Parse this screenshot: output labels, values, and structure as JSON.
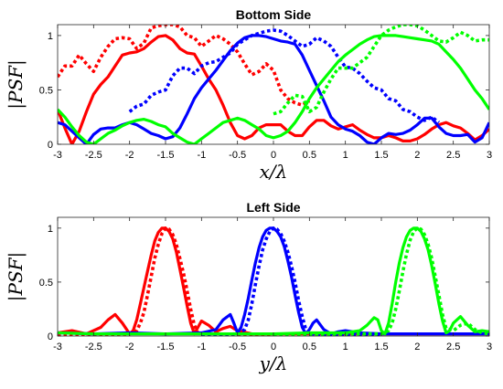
{
  "chart_data": [
    {
      "type": "line",
      "title": "Bottom Side",
      "xlabel": "x/λ",
      "ylabel": "|PSF|",
      "xlim": [
        -3,
        3
      ],
      "ylim": [
        0,
        1.1
      ],
      "xticks": [
        -3,
        -2.5,
        -2,
        -1.5,
        -1,
        -0.5,
        0,
        0.5,
        1,
        1.5,
        2,
        2.5,
        3
      ],
      "yticks": [
        0,
        0.5,
        1
      ],
      "grid": false,
      "series": [
        {
          "color": "#ff0000",
          "style": "solid",
          "x": [
            -3,
            -2.9,
            -2.8,
            -2.7,
            -2.6,
            -2.5,
            -2.4,
            -2.3,
            -2.2,
            -2.1,
            -2.0,
            -1.9,
            -1.8,
            -1.7,
            -1.6,
            -1.5,
            -1.4,
            -1.3,
            -1.2,
            -1.1,
            -1.0,
            -0.9,
            -0.8,
            -0.7,
            -0.6,
            -0.5,
            -0.4,
            -0.3,
            -0.2,
            -0.1,
            0.0,
            0.1,
            0.2,
            0.3,
            0.4,
            0.5,
            0.6,
            0.7,
            0.8,
            0.9,
            1.0,
            1.1,
            1.2,
            1.3,
            1.4,
            1.5,
            1.6,
            1.7,
            1.8,
            1.9,
            2.0,
            2.1,
            2.2,
            2.3,
            2.4,
            2.5,
            2.6,
            2.7,
            2.8,
            2.9,
            3.0
          ],
          "y": [
            0.32,
            0.15,
            0.0,
            0.12,
            0.3,
            0.46,
            0.55,
            0.62,
            0.72,
            0.82,
            0.84,
            0.85,
            0.88,
            0.94,
            0.99,
            1.0,
            0.96,
            0.88,
            0.84,
            0.83,
            0.72,
            0.6,
            0.5,
            0.36,
            0.2,
            0.08,
            0.05,
            0.08,
            0.15,
            0.18,
            0.18,
            0.18,
            0.12,
            0.08,
            0.08,
            0.16,
            0.22,
            0.22,
            0.17,
            0.14,
            0.16,
            0.18,
            0.13,
            0.09,
            0.06,
            0.06,
            0.08,
            0.06,
            0.03,
            0.03,
            0.05,
            0.09,
            0.14,
            0.18,
            0.2,
            0.17,
            0.15,
            0.1,
            0.04,
            0.08,
            0.14
          ]
        },
        {
          "color": "#ff0000",
          "style": "dotted",
          "x": [
            -3,
            -2.9,
            -2.8,
            -2.7,
            -2.6,
            -2.5,
            -2.4,
            -2.3,
            -2.2,
            -2.1,
            -2.0,
            -1.9,
            -1.8,
            -1.7,
            -1.6,
            -1.5,
            -1.4,
            -1.3,
            -1.2,
            -1.1,
            -1.0,
            -0.9,
            -0.8,
            -0.7,
            -0.6,
            -0.5,
            -0.4,
            -0.3,
            -0.2,
            -0.1,
            0.0,
            0.1,
            0.2,
            0.3,
            0.4,
            0.5
          ],
          "y": [
            0.62,
            0.72,
            0.72,
            0.82,
            0.74,
            0.67,
            0.8,
            0.9,
            0.97,
            0.98,
            0.97,
            0.88,
            0.93,
            1.07,
            1.09,
            1.1,
            1.1,
            1.08,
            1.0,
            0.98,
            0.9,
            0.95,
            1.0,
            0.97,
            0.92,
            0.85,
            0.74,
            0.64,
            0.67,
            0.74,
            0.68,
            0.5,
            0.42,
            0.38,
            0.36,
            0.4
          ]
        },
        {
          "color": "#0000ff",
          "style": "solid",
          "x": [
            -3,
            -2.9,
            -2.8,
            -2.7,
            -2.6,
            -2.5,
            -2.4,
            -2.3,
            -2.2,
            -2.1,
            -2.0,
            -1.9,
            -1.8,
            -1.7,
            -1.6,
            -1.5,
            -1.4,
            -1.3,
            -1.2,
            -1.1,
            -1.0,
            -0.9,
            -0.8,
            -0.7,
            -0.6,
            -0.5,
            -0.4,
            -0.3,
            -0.2,
            -0.1,
            0.0,
            0.1,
            0.2,
            0.3,
            0.4,
            0.5,
            0.6,
            0.7,
            0.8,
            0.9,
            1.0,
            1.1,
            1.2,
            1.3,
            1.4,
            1.5,
            1.6,
            1.7,
            1.8,
            1.9,
            2.0,
            2.1,
            2.2,
            2.3,
            2.4,
            2.5,
            2.6,
            2.7,
            2.8,
            2.9,
            3.0
          ],
          "y": [
            0.2,
            0.18,
            0.12,
            0.06,
            0.0,
            0.09,
            0.14,
            0.15,
            0.15,
            0.18,
            0.2,
            0.18,
            0.14,
            0.1,
            0.08,
            0.05,
            0.07,
            0.15,
            0.28,
            0.42,
            0.52,
            0.6,
            0.68,
            0.77,
            0.86,
            0.93,
            0.98,
            1.0,
            1.0,
            0.99,
            0.97,
            0.95,
            0.94,
            0.92,
            0.82,
            0.68,
            0.54,
            0.4,
            0.25,
            0.18,
            0.14,
            0.12,
            0.08,
            0.02,
            0.0,
            0.06,
            0.1,
            0.09,
            0.1,
            0.13,
            0.18,
            0.24,
            0.24,
            0.16,
            0.1,
            0.08,
            0.08,
            0.09,
            0.02,
            0.06,
            0.2
          ]
        },
        {
          "color": "#0000ff",
          "style": "dotted",
          "x": [
            -2.0,
            -1.9,
            -1.8,
            -1.7,
            -1.6,
            -1.5,
            -1.4,
            -1.3,
            -1.2,
            -1.1,
            -1.0,
            -0.9,
            -0.8,
            -0.7,
            -0.6,
            -0.5,
            -0.4,
            -0.3,
            -0.2,
            -0.1,
            0.0,
            0.1,
            0.2,
            0.3,
            0.4,
            0.5,
            0.6,
            0.7,
            0.8,
            0.9,
            1.0,
            1.1,
            1.2,
            1.3,
            1.4,
            1.5,
            1.6,
            1.7,
            1.8,
            1.9,
            2.0,
            2.1,
            2.2,
            2.3
          ],
          "y": [
            0.3,
            0.35,
            0.37,
            0.45,
            0.48,
            0.5,
            0.63,
            0.7,
            0.7,
            0.65,
            0.72,
            0.75,
            0.76,
            0.8,
            0.84,
            0.92,
            0.96,
            1.0,
            1.02,
            1.04,
            1.05,
            1.04,
            1.0,
            0.95,
            0.9,
            0.92,
            0.98,
            0.95,
            0.9,
            0.8,
            0.71,
            0.7,
            0.65,
            0.58,
            0.52,
            0.5,
            0.42,
            0.4,
            0.32,
            0.3,
            0.25,
            0.22,
            0.25,
            0.2
          ]
        },
        {
          "color": "#00ff00",
          "style": "solid",
          "x": [
            -3,
            -2.9,
            -2.8,
            -2.7,
            -2.6,
            -2.5,
            -2.4,
            -2.3,
            -2.2,
            -2.1,
            -2.0,
            -1.9,
            -1.8,
            -1.7,
            -1.6,
            -1.5,
            -1.4,
            -1.3,
            -1.2,
            -1.1,
            -1.0,
            -0.9,
            -0.8,
            -0.7,
            -0.6,
            -0.5,
            -0.4,
            -0.3,
            -0.2,
            -0.1,
            0.0,
            0.1,
            0.2,
            0.3,
            0.4,
            0.5,
            0.6,
            0.7,
            0.8,
            0.9,
            1.0,
            1.1,
            1.2,
            1.3,
            1.4,
            1.5,
            1.6,
            1.7,
            1.8,
            1.9,
            2.0,
            2.1,
            2.2,
            2.3,
            2.4,
            2.5,
            2.6,
            2.7,
            2.8,
            2.9,
            3.0
          ],
          "y": [
            0.32,
            0.25,
            0.16,
            0.08,
            0.02,
            0.0,
            0.05,
            0.1,
            0.13,
            0.17,
            0.2,
            0.22,
            0.23,
            0.21,
            0.18,
            0.16,
            0.1,
            0.06,
            0.02,
            0.0,
            0.05,
            0.1,
            0.15,
            0.2,
            0.22,
            0.24,
            0.22,
            0.18,
            0.14,
            0.08,
            0.06,
            0.08,
            0.12,
            0.2,
            0.3,
            0.42,
            0.52,
            0.6,
            0.68,
            0.76,
            0.82,
            0.87,
            0.92,
            0.96,
            0.99,
            1.0,
            1.0,
            1.0,
            0.99,
            0.98,
            0.97,
            0.96,
            0.95,
            0.92,
            0.85,
            0.78,
            0.7,
            0.6,
            0.5,
            0.42,
            0.32
          ]
        },
        {
          "color": "#00ff00",
          "style": "dotted",
          "x": [
            0.0,
            0.1,
            0.2,
            0.3,
            0.4,
            0.5,
            0.6,
            0.7,
            0.8,
            0.9,
            1.0,
            1.1,
            1.2,
            1.3,
            1.4,
            1.5,
            1.6,
            1.7,
            1.8,
            1.9,
            2.0,
            2.1,
            2.2,
            2.3,
            2.4,
            2.5,
            2.6,
            2.7,
            2.8,
            2.9,
            3.0
          ],
          "y": [
            0.28,
            0.3,
            0.38,
            0.45,
            0.44,
            0.3,
            0.34,
            0.48,
            0.6,
            0.7,
            0.7,
            0.7,
            0.75,
            0.8,
            0.9,
            1.0,
            1.05,
            1.08,
            1.1,
            1.1,
            1.09,
            1.05,
            1.0,
            0.95,
            0.94,
            0.98,
            1.03,
            1.0,
            0.95,
            0.96,
            0.96
          ]
        }
      ]
    },
    {
      "type": "line",
      "title": "Left Side",
      "xlabel": "y/λ",
      "ylabel": "|PSF|",
      "xlim": [
        -3,
        3
      ],
      "ylim": [
        0,
        1.1
      ],
      "xticks": [
        -3,
        -2.5,
        -2,
        -1.5,
        -1,
        -0.5,
        0,
        0.5,
        1,
        1.5,
        2,
        2.5,
        3
      ],
      "yticks": [
        0,
        0.5,
        1
      ],
      "grid": false,
      "series": [
        {
          "color": "#ff0000",
          "style": "solid",
          "x": [
            -3,
            -2.8,
            -2.6,
            -2.4,
            -2.3,
            -2.2,
            -2.1,
            -2.0,
            -1.95,
            -1.9,
            -1.85,
            -1.8,
            -1.75,
            -1.7,
            -1.65,
            -1.6,
            -1.55,
            -1.5,
            -1.45,
            -1.4,
            -1.35,
            -1.3,
            -1.25,
            -1.2,
            -1.15,
            -1.1,
            -1.05,
            -1.0,
            -0.9,
            -0.8,
            -0.7,
            -0.6,
            -0.5,
            -0.3,
            0.0,
            0.5,
            1.0,
            1.5,
            2.0,
            2.5,
            3.0
          ],
          "y": [
            0.03,
            0.05,
            0.02,
            0.08,
            0.15,
            0.2,
            0.12,
            0.02,
            0.05,
            0.15,
            0.3,
            0.45,
            0.6,
            0.75,
            0.88,
            0.96,
            1.0,
            1.0,
            0.97,
            0.9,
            0.78,
            0.62,
            0.45,
            0.28,
            0.12,
            0.02,
            0.08,
            0.14,
            0.1,
            0.04,
            0.07,
            0.09,
            0.05,
            0.02,
            0.02,
            0.02,
            0.02,
            0.02,
            0.02,
            0.02,
            0.02
          ]
        },
        {
          "color": "#ff0000",
          "style": "dotted",
          "x": [
            -3,
            -2.5,
            -2.0,
            -1.9,
            -1.85,
            -1.8,
            -1.75,
            -1.7,
            -1.65,
            -1.6,
            -1.55,
            -1.5,
            -1.45,
            -1.4,
            -1.35,
            -1.3,
            -1.25,
            -1.2,
            -1.15,
            -1.1,
            -1.05,
            -1.0,
            -0.5,
            0.0
          ],
          "y": [
            0.01,
            0.01,
            0.02,
            0.05,
            0.12,
            0.22,
            0.38,
            0.55,
            0.72,
            0.85,
            0.95,
            1.0,
            0.99,
            0.94,
            0.85,
            0.72,
            0.58,
            0.42,
            0.25,
            0.1,
            0.03,
            0.02,
            0.01,
            0.01
          ]
        },
        {
          "color": "#0000ff",
          "style": "solid",
          "x": [
            -3,
            -2.5,
            -2.0,
            -1.5,
            -1.0,
            -0.8,
            -0.7,
            -0.6,
            -0.55,
            -0.5,
            -0.45,
            -0.4,
            -0.35,
            -0.3,
            -0.25,
            -0.2,
            -0.15,
            -0.1,
            -0.05,
            0.0,
            0.05,
            0.1,
            0.15,
            0.2,
            0.25,
            0.3,
            0.35,
            0.4,
            0.45,
            0.5,
            0.55,
            0.6,
            0.7,
            0.8,
            0.9,
            1.0,
            1.2,
            1.5,
            2.0,
            2.5,
            3.0
          ],
          "y": [
            0.03,
            0.02,
            0.03,
            0.02,
            0.03,
            0.06,
            0.15,
            0.2,
            0.12,
            0.03,
            0.08,
            0.2,
            0.35,
            0.52,
            0.68,
            0.82,
            0.92,
            0.98,
            1.0,
            1.0,
            0.97,
            0.92,
            0.83,
            0.7,
            0.55,
            0.38,
            0.22,
            0.08,
            0.02,
            0.06,
            0.12,
            0.15,
            0.06,
            0.02,
            0.04,
            0.05,
            0.03,
            0.02,
            0.02,
            0.02,
            0.02
          ]
        },
        {
          "color": "#0000ff",
          "style": "dotted",
          "x": [
            -1.0,
            -0.5,
            -0.4,
            -0.35,
            -0.3,
            -0.25,
            -0.2,
            -0.15,
            -0.1,
            -0.05,
            0.0,
            0.05,
            0.1,
            0.15,
            0.2,
            0.25,
            0.3,
            0.35,
            0.4,
            0.45,
            0.5,
            1.0,
            1.5
          ],
          "y": [
            0.01,
            0.02,
            0.06,
            0.15,
            0.3,
            0.48,
            0.65,
            0.8,
            0.9,
            0.97,
            1.0,
            0.99,
            0.95,
            0.88,
            0.78,
            0.65,
            0.5,
            0.33,
            0.18,
            0.06,
            0.02,
            0.01,
            0.01
          ]
        },
        {
          "color": "#00ff00",
          "style": "solid",
          "x": [
            -3,
            -2.5,
            -2.0,
            -1.5,
            -1.0,
            -0.5,
            0.0,
            0.5,
            1.0,
            1.2,
            1.3,
            1.4,
            1.45,
            1.5,
            1.55,
            1.6,
            1.65,
            1.7,
            1.75,
            1.8,
            1.85,
            1.9,
            1.95,
            2.0,
            2.05,
            2.1,
            2.15,
            2.2,
            2.25,
            2.3,
            2.35,
            2.4,
            2.45,
            2.5,
            2.6,
            2.7,
            2.8,
            2.9,
            3.0
          ],
          "y": [
            0.03,
            0.02,
            0.02,
            0.02,
            0.02,
            0.02,
            0.02,
            0.03,
            0.03,
            0.05,
            0.1,
            0.17,
            0.15,
            0.05,
            0.02,
            0.12,
            0.3,
            0.5,
            0.68,
            0.82,
            0.92,
            0.98,
            1.0,
            1.0,
            0.97,
            0.9,
            0.8,
            0.65,
            0.48,
            0.3,
            0.14,
            0.03,
            0.05,
            0.12,
            0.18,
            0.1,
            0.04,
            0.05,
            0.04
          ]
        },
        {
          "color": "#00ff00",
          "style": "dotted",
          "x": [
            0.0,
            1.0,
            1.5,
            1.6,
            1.65,
            1.7,
            1.75,
            1.8,
            1.85,
            1.9,
            1.95,
            2.0,
            2.05,
            2.1,
            2.15,
            2.2,
            2.25,
            2.3,
            2.35,
            2.4,
            2.5,
            2.6,
            2.7,
            2.8,
            2.9,
            3.0
          ],
          "y": [
            0.01,
            0.02,
            0.02,
            0.05,
            0.12,
            0.25,
            0.42,
            0.6,
            0.76,
            0.89,
            0.97,
            1.0,
            0.99,
            0.94,
            0.85,
            0.72,
            0.55,
            0.38,
            0.2,
            0.07,
            0.05,
            0.1,
            0.12,
            0.06,
            0.03,
            0.02
          ]
        }
      ]
    }
  ]
}
